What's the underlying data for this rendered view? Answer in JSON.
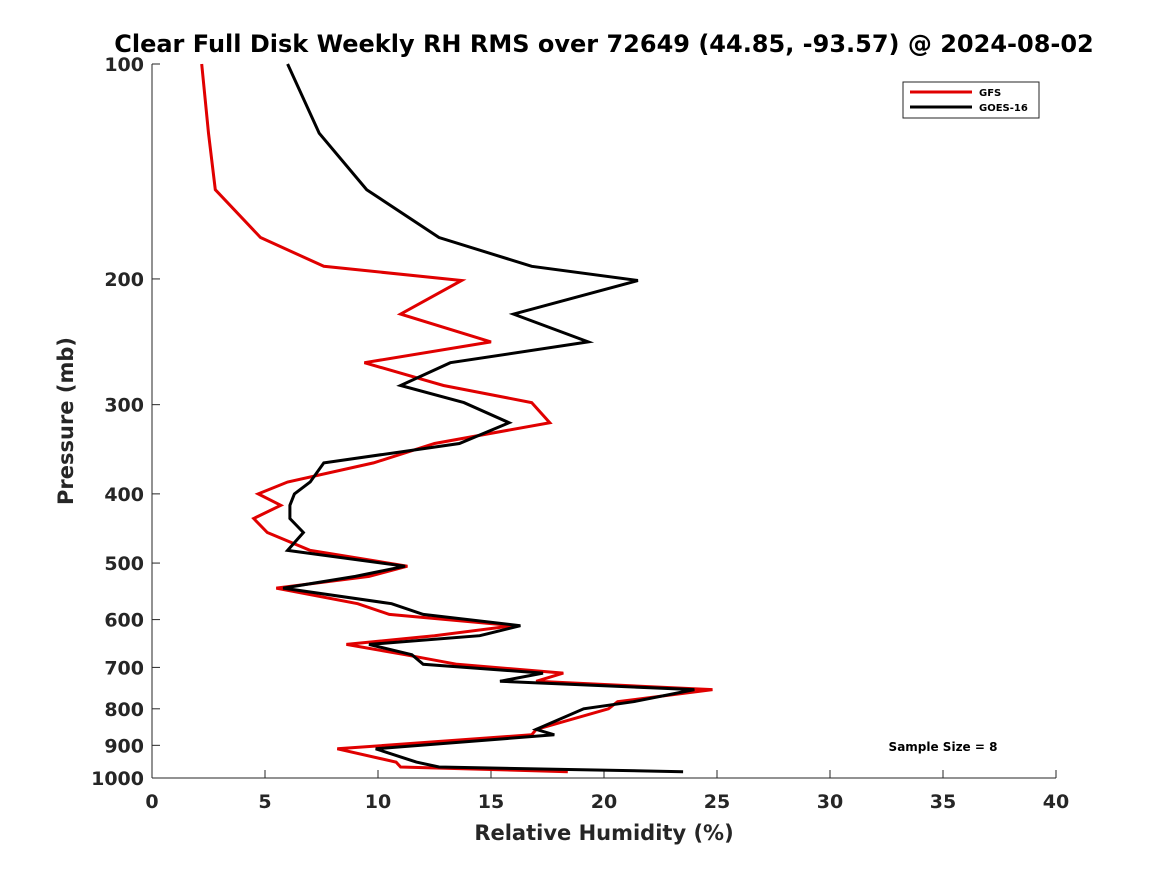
{
  "chart_data": {
    "type": "line",
    "title": "Clear Full Disk Weekly RH RMS over 72649 (44.85, -93.57) @ 2024-08-02",
    "xlabel": "Relative Humidity (%)",
    "ylabel": "Pressure (mb)",
    "xlim": [
      0,
      40
    ],
    "ylim": [
      100,
      1000
    ],
    "y_scale": "log",
    "y_reversed": true,
    "xticks": [
      0,
      5,
      10,
      15,
      20,
      25,
      30,
      35,
      40
    ],
    "yticks": [
      100,
      200,
      300,
      400,
      500,
      600,
      700,
      800,
      900,
      1000
    ],
    "grid": false,
    "legend_position": "top-right",
    "annotation": "Sample Size = 8",
    "series": [
      {
        "name": "GFS",
        "color": "#e00000",
        "points": [
          [
            2.2,
            100
          ],
          [
            2.5,
            125
          ],
          [
            2.8,
            150
          ],
          [
            4.8,
            175
          ],
          [
            7.6,
            192
          ],
          [
            13.7,
            201
          ],
          [
            11.0,
            224
          ],
          [
            15.0,
            245
          ],
          [
            9.4,
            262
          ],
          [
            12.9,
            282
          ],
          [
            16.8,
            298
          ],
          [
            17.6,
            318
          ],
          [
            12.5,
            340
          ],
          [
            9.8,
            362
          ],
          [
            6.0,
            385
          ],
          [
            4.7,
            400
          ],
          [
            5.7,
            415
          ],
          [
            4.5,
            433
          ],
          [
            5.1,
            453
          ],
          [
            7.0,
            480
          ],
          [
            11.3,
            505
          ],
          [
            9.6,
            522
          ],
          [
            5.5,
            542
          ],
          [
            9.1,
            570
          ],
          [
            10.5,
            590
          ],
          [
            16.0,
            612
          ],
          [
            12.5,
            632
          ],
          [
            8.6,
            650
          ],
          [
            11.2,
            672
          ],
          [
            13.5,
            693
          ],
          [
            18.2,
            713
          ],
          [
            17.0,
            732
          ],
          [
            24.8,
            752
          ],
          [
            20.6,
            782
          ],
          [
            20.2,
            800
          ],
          [
            17.0,
            855
          ],
          [
            16.8,
            870
          ],
          [
            8.2,
            910
          ],
          [
            10.8,
            950
          ],
          [
            11.0,
            965
          ],
          [
            18.4,
            980
          ]
        ]
      },
      {
        "name": "GOES-16",
        "color": "#000000",
        "points": [
          [
            6.0,
            100
          ],
          [
            7.4,
            125
          ],
          [
            9.5,
            150
          ],
          [
            12.7,
            175
          ],
          [
            16.8,
            192
          ],
          [
            21.5,
            201
          ],
          [
            16.0,
            224
          ],
          [
            19.3,
            245
          ],
          [
            13.2,
            262
          ],
          [
            11.0,
            282
          ],
          [
            13.8,
            298
          ],
          [
            15.8,
            318
          ],
          [
            13.6,
            340
          ],
          [
            7.6,
            362
          ],
          [
            7.0,
            385
          ],
          [
            6.3,
            400
          ],
          [
            6.1,
            415
          ],
          [
            6.1,
            433
          ],
          [
            6.7,
            453
          ],
          [
            6.0,
            480
          ],
          [
            11.2,
            505
          ],
          [
            9.0,
            522
          ],
          [
            5.8,
            542
          ],
          [
            10.6,
            570
          ],
          [
            12.0,
            590
          ],
          [
            16.3,
            612
          ],
          [
            14.5,
            632
          ],
          [
            9.6,
            650
          ],
          [
            11.5,
            672
          ],
          [
            12.0,
            693
          ],
          [
            17.3,
            713
          ],
          [
            15.4,
            732
          ],
          [
            24.0,
            752
          ],
          [
            21.3,
            782
          ],
          [
            19.1,
            800
          ],
          [
            17.0,
            855
          ],
          [
            17.8,
            870
          ],
          [
            9.9,
            910
          ],
          [
            11.7,
            950
          ],
          [
            12.7,
            965
          ],
          [
            23.5,
            980
          ]
        ]
      }
    ]
  }
}
